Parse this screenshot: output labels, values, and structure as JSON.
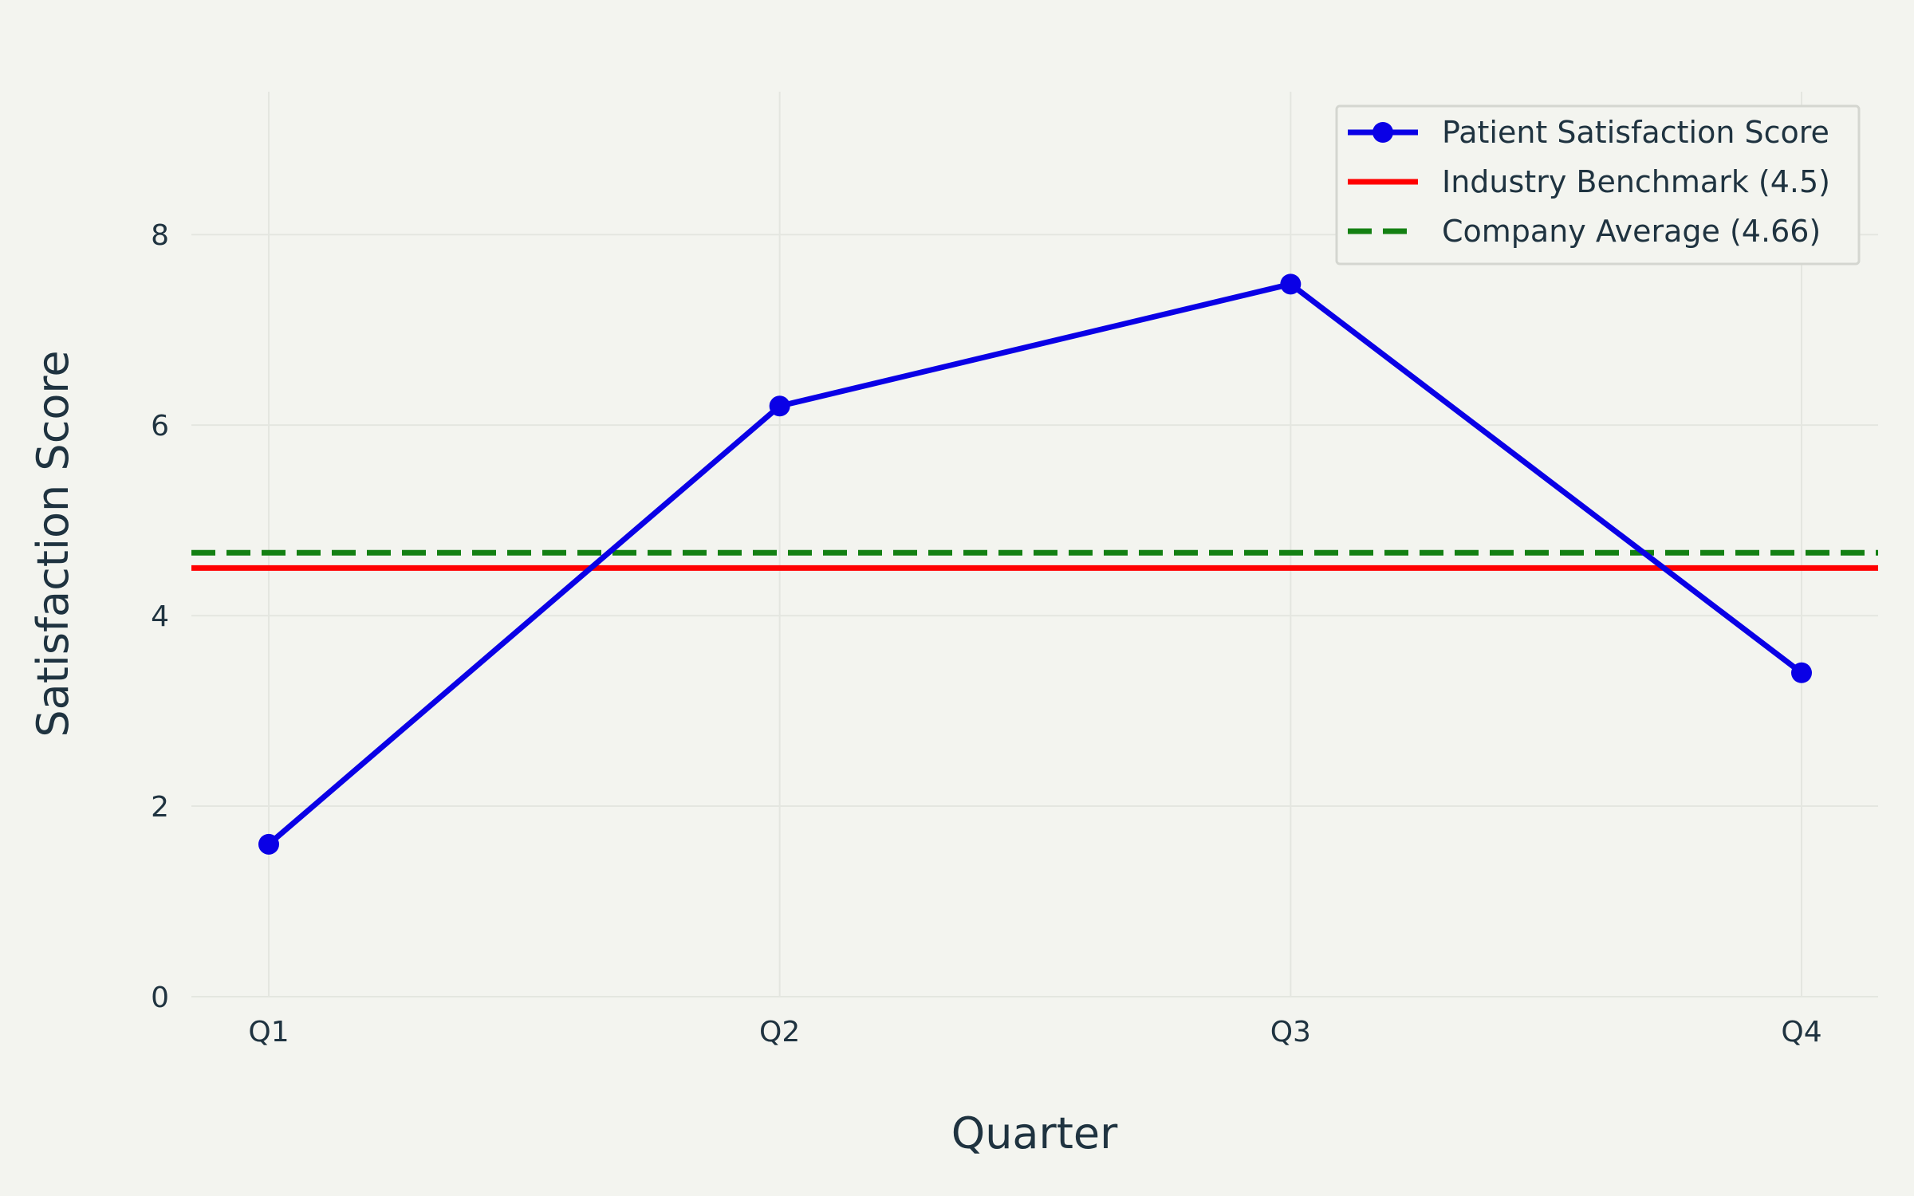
{
  "chart_data": {
    "type": "line",
    "categories": [
      "Q1",
      "Q2",
      "Q3",
      "Q4"
    ],
    "series": [
      {
        "name": "Patient Satisfaction Score",
        "values": [
          1.6,
          6.2,
          7.48,
          3.4
        ],
        "color": "#0a00e6",
        "style": "solid",
        "markers": true
      }
    ],
    "reference_lines": [
      {
        "name": "Industry Benchmark (4.5)",
        "value": 4.5,
        "color": "#ff0000",
        "style": "solid"
      },
      {
        "name": "Company Average (4.66)",
        "value": 4.66,
        "color": "#138012",
        "style": "dashed"
      }
    ],
    "xlabel": "Quarter",
    "ylabel": "Satisfaction Score",
    "ylim": [
      0,
      9.5
    ],
    "yticks": [
      0,
      2,
      4,
      6,
      8
    ],
    "grid": true,
    "legend_position": "top-right",
    "background": "#f3f4ef",
    "text_color": "#1f3340",
    "grid_color": "#e4e6e0"
  }
}
